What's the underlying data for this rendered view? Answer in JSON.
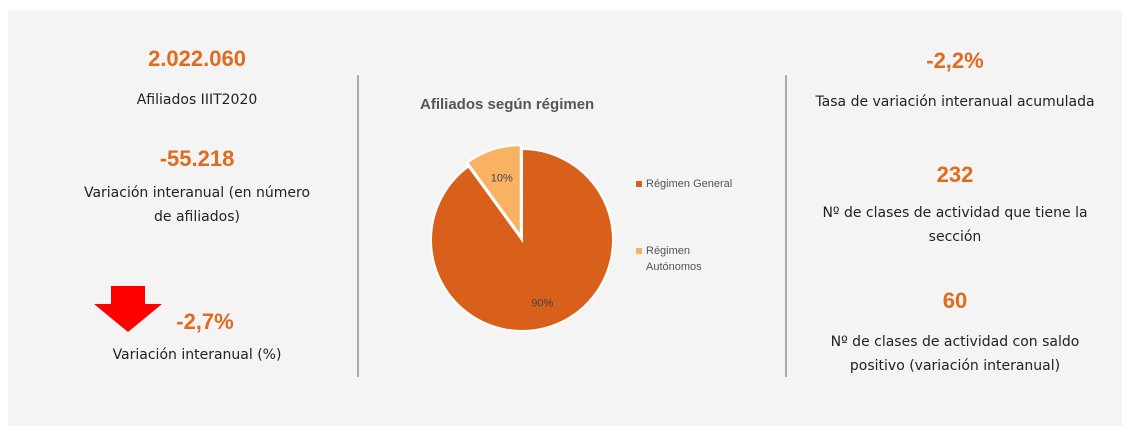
{
  "left": [
    {
      "value": "2.022.060",
      "label": "Afiliados IIIT2020"
    },
    {
      "value": "-55.218",
      "label": "Variación interanual (en número de afiliados)"
    },
    {
      "value": "-2,7%",
      "label": "Variación interanual (%)"
    }
  ],
  "right": [
    {
      "value": "-2,2%",
      "label": "Tasa de variación interanual acumulada"
    },
    {
      "value": "232",
      "label": "Nº de clases de actividad que tiene la sección"
    },
    {
      "value": "60",
      "label": "Nº de clases de actividad con saldo positivo (variación interanual)"
    }
  ],
  "chart_data": {
    "type": "pie",
    "title": "Afiliados según régimen",
    "categories": [
      "Régimen General",
      "Régimen Autónomos"
    ],
    "values": [
      90,
      10
    ],
    "value_labels": [
      "90%",
      "10%"
    ],
    "colors": [
      "#d9601a",
      "#f9b262"
    ]
  }
}
